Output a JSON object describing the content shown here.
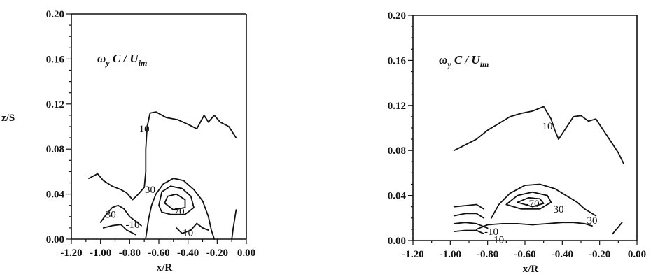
{
  "chart_data": [
    {
      "type": "contour",
      "annotation": "ω_y C / U_im",
      "annotation_parts": {
        "omega": "ω",
        "sub1": "y",
        "mid": "C / U",
        "sub2": "im"
      },
      "xlabel": "x/R",
      "ylabel": "z/S",
      "xlim": [
        -1.2,
        0.0
      ],
      "ylim": [
        0.0,
        0.2
      ],
      "x_ticks": [
        "-1.20",
        "-1.00",
        "-0.80",
        "-0.60",
        "-0.40",
        "-0.20",
        "0.00"
      ],
      "y_ticks": [
        "0.00",
        "0.04",
        "0.08",
        "0.12",
        "0.16",
        "0.20"
      ],
      "contours": [
        {
          "level": 10,
          "points": [
            [
              -1.08,
              0.054
            ],
            [
              -1.02,
              0.058
            ],
            [
              -0.98,
              0.052
            ],
            [
              -0.92,
              0.047
            ],
            [
              -0.86,
              0.044
            ],
            [
              -0.82,
              0.041
            ],
            [
              -0.78,
              0.035
            ],
            [
              -0.74,
              0.04
            ],
            [
              -0.7,
              0.046
            ],
            [
              -0.69,
              0.06
            ],
            [
              -0.69,
              0.08
            ],
            [
              -0.68,
              0.1
            ],
            [
              -0.66,
              0.112
            ],
            [
              -0.62,
              0.113
            ],
            [
              -0.55,
              0.108
            ],
            [
              -0.47,
              0.106
            ],
            [
              -0.4,
              0.102
            ],
            [
              -0.34,
              0.098
            ],
            [
              -0.29,
              0.11
            ],
            [
              -0.26,
              0.104
            ],
            [
              -0.22,
              0.11
            ],
            [
              -0.18,
              0.104
            ],
            [
              -0.12,
              0.1
            ],
            [
              -0.07,
              0.09
            ]
          ]
        },
        {
          "level": 30,
          "points": [
            [
              -0.69,
              0.001
            ],
            [
              -0.67,
              0.018
            ],
            [
              -0.65,
              0.03
            ],
            [
              -0.62,
              0.04
            ],
            [
              -0.57,
              0.049
            ],
            [
              -0.5,
              0.054
            ],
            [
              -0.43,
              0.052
            ],
            [
              -0.36,
              0.044
            ],
            [
              -0.3,
              0.034
            ],
            [
              -0.26,
              0.02
            ],
            [
              -0.24,
              0.008
            ],
            [
              -0.22,
              0.0
            ]
          ]
        },
        {
          "level": 50,
          "points": [
            [
              -0.6,
              0.03
            ],
            [
              -0.58,
              0.042
            ],
            [
              -0.52,
              0.047
            ],
            [
              -0.44,
              0.045
            ],
            [
              -0.38,
              0.038
            ],
            [
              -0.36,
              0.028
            ],
            [
              -0.42,
              0.022
            ],
            [
              -0.52,
              0.022
            ],
            [
              -0.58,
              0.024
            ],
            [
              -0.6,
              0.03
            ]
          ]
        },
        {
          "level": 70,
          "points": [
            [
              -0.56,
              0.032
            ],
            [
              -0.54,
              0.038
            ],
            [
              -0.48,
              0.04
            ],
            [
              -0.42,
              0.035
            ],
            [
              -0.42,
              0.028
            ],
            [
              -0.5,
              0.026
            ],
            [
              -0.56,
              0.032
            ]
          ]
        },
        {
          "level": 30,
          "points": [
            [
              -1.0,
              0.015
            ],
            [
              -0.96,
              0.022
            ],
            [
              -0.92,
              0.028
            ],
            [
              -0.88,
              0.03
            ],
            [
              -0.84,
              0.027
            ],
            [
              -0.8,
              0.02
            ],
            [
              -0.76,
              0.016
            ],
            [
              -0.72,
              0.012
            ]
          ]
        },
        {
          "level": 10,
          "points": [
            [
              -0.98,
              0.01
            ],
            [
              -0.92,
              0.012
            ],
            [
              -0.86,
              0.013
            ],
            [
              -0.82,
              0.008
            ],
            [
              -0.76,
              0.004
            ]
          ]
        },
        {
          "level": 10,
          "points": [
            [
              -0.48,
              0.01
            ],
            [
              -0.44,
              0.005
            ],
            [
              -0.38,
              0.008
            ],
            [
              -0.34,
              0.014
            ],
            [
              -0.3,
              0.01
            ],
            [
              -0.26,
              0.008
            ]
          ]
        },
        {
          "level": 10,
          "points": [
            [
              -0.1,
              0.0
            ],
            [
              -0.09,
              0.01
            ],
            [
              -0.07,
              0.026
            ]
          ]
        }
      ],
      "contour_labels": [
        {
          "text": "10",
          "x": -0.7,
          "y": 0.098
        },
        {
          "text": "30",
          "x": -0.66,
          "y": 0.044
        },
        {
          "text": "30",
          "x": -0.93,
          "y": 0.022
        },
        {
          "text": "-10",
          "x": -0.78,
          "y": 0.013
        },
        {
          "text": "70",
          "x": -0.46,
          "y": 0.025
        },
        {
          "text": "10",
          "x": -0.4,
          "y": 0.006
        }
      ]
    },
    {
      "type": "contour",
      "annotation": "ω_y C / U_im",
      "annotation_parts": {
        "omega": "ω",
        "sub1": "y",
        "mid": "C / U",
        "sub2": "im"
      },
      "xlabel": "x/R",
      "ylabel": "",
      "xlim": [
        -1.2,
        0.0
      ],
      "ylim": [
        0.0,
        0.2
      ],
      "x_ticks": [
        "-1.20",
        "-1.00",
        "-0.80",
        "-0.60",
        "-0.40",
        "-0.20",
        "0.00"
      ],
      "y_ticks": [
        "0.00",
        "0.04",
        "0.08",
        "0.12",
        "0.16",
        "0.20"
      ],
      "contours": [
        {
          "level": 10,
          "points": [
            [
              -0.98,
              0.08
            ],
            [
              -0.92,
              0.085
            ],
            [
              -0.86,
              0.09
            ],
            [
              -0.8,
              0.098
            ],
            [
              -0.74,
              0.104
            ],
            [
              -0.68,
              0.11
            ],
            [
              -0.62,
              0.113
            ],
            [
              -0.56,
              0.115
            ],
            [
              -0.5,
              0.119
            ],
            [
              -0.46,
              0.108
            ],
            [
              -0.44,
              0.098
            ],
            [
              -0.42,
              0.09
            ],
            [
              -0.38,
              0.1
            ],
            [
              -0.34,
              0.11
            ],
            [
              -0.3,
              0.111
            ],
            [
              -0.26,
              0.106
            ],
            [
              -0.22,
              0.108
            ],
            [
              -0.18,
              0.098
            ],
            [
              -0.14,
              0.088
            ],
            [
              -0.1,
              0.078
            ],
            [
              -0.07,
              0.068
            ]
          ]
        },
        {
          "level": 30,
          "points": [
            [
              -0.78,
              0.02
            ],
            [
              -0.74,
              0.032
            ],
            [
              -0.68,
              0.042
            ],
            [
              -0.6,
              0.049
            ],
            [
              -0.52,
              0.05
            ],
            [
              -0.44,
              0.046
            ],
            [
              -0.38,
              0.04
            ],
            [
              -0.32,
              0.034
            ],
            [
              -0.28,
              0.028
            ],
            [
              -0.22,
              0.022
            ]
          ]
        },
        {
          "level": 30,
          "points": [
            [
              -0.86,
              0.01
            ],
            [
              -0.8,
              0.014
            ],
            [
              -0.72,
              0.015
            ],
            [
              -0.64,
              0.015
            ],
            [
              -0.56,
              0.014
            ],
            [
              -0.48,
              0.015
            ],
            [
              -0.4,
              0.016
            ],
            [
              -0.34,
              0.016
            ],
            [
              -0.28,
              0.015
            ],
            [
              -0.24,
              0.013
            ]
          ]
        },
        {
          "level": 50,
          "points": [
            [
              -0.7,
              0.032
            ],
            [
              -0.64,
              0.04
            ],
            [
              -0.56,
              0.043
            ],
            [
              -0.48,
              0.04
            ],
            [
              -0.46,
              0.034
            ],
            [
              -0.52,
              0.028
            ],
            [
              -0.62,
              0.028
            ],
            [
              -0.7,
              0.032
            ]
          ]
        },
        {
          "level": 70,
          "points": [
            [
              -0.64,
              0.034
            ],
            [
              -0.58,
              0.038
            ],
            [
              -0.52,
              0.037
            ],
            [
              -0.5,
              0.033
            ],
            [
              -0.56,
              0.03
            ],
            [
              -0.64,
              0.034
            ]
          ]
        },
        {
          "level": 10,
          "points": [
            [
              -0.98,
              0.03
            ],
            [
              -0.92,
              0.031
            ],
            [
              -0.86,
              0.032
            ],
            [
              -0.82,
              0.028
            ]
          ]
        },
        {
          "level": 10,
          "points": [
            [
              -0.98,
              0.022
            ],
            [
              -0.92,
              0.024
            ],
            [
              -0.86,
              0.024
            ],
            [
              -0.82,
              0.02
            ]
          ]
        },
        {
          "level": 10,
          "points": [
            [
              -0.98,
              0.015
            ],
            [
              -0.92,
              0.016
            ],
            [
              -0.86,
              0.015
            ],
            [
              -0.8,
              0.011
            ]
          ]
        },
        {
          "level": 10,
          "points": [
            [
              -0.98,
              0.008
            ],
            [
              -0.92,
              0.009
            ],
            [
              -0.86,
              0.009
            ],
            [
              -0.82,
              0.006
            ]
          ]
        },
        {
          "level": 10,
          "points": [
            [
              -0.13,
              0.006
            ],
            [
              -0.1,
              0.012
            ],
            [
              -0.08,
              0.016
            ]
          ]
        }
      ],
      "contour_labels": [
        {
          "text": "10",
          "x": -0.48,
          "y": 0.102
        },
        {
          "text": "-70",
          "x": -0.56,
          "y": 0.033
        },
        {
          "text": "30",
          "x": -0.42,
          "y": 0.028
        },
        {
          "text": "30",
          "x": -0.24,
          "y": 0.018
        },
        {
          "text": "-10",
          "x": -0.78,
          "y": 0.008
        },
        {
          "text": "10",
          "x": -0.74,
          "y": 0.001
        }
      ]
    }
  ]
}
